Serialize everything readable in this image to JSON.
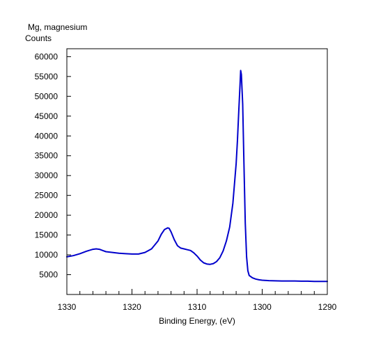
{
  "chart_data": {
    "type": "line",
    "title": "Mg, magnesium",
    "ylabel": "Counts",
    "xlabel": "Binding Energy, (eV)",
    "xlim": [
      1330,
      1290
    ],
    "x_reversed": true,
    "ylim": [
      0,
      62000
    ],
    "x_ticks": [
      1330,
      1320,
      1310,
      1300,
      1290
    ],
    "x_tick_labels": [
      "1330",
      "1320",
      "1310",
      "1300",
      "1290"
    ],
    "y_ticks": [
      5000,
      10000,
      15000,
      20000,
      25000,
      30000,
      35000,
      40000,
      45000,
      50000,
      55000,
      60000
    ],
    "y_tick_labels": [
      "5000",
      "10000",
      "15000",
      "20000",
      "25000",
      "30000",
      "35000",
      "40000",
      "45000",
      "50000",
      "55000",
      "60000"
    ],
    "grid": false,
    "series": [
      {
        "color": "#0000cc",
        "x": [
          1330,
          1329,
          1328,
          1327,
          1326,
          1325.5,
          1325,
          1324.5,
          1324,
          1323,
          1322,
          1321,
          1320,
          1319,
          1318,
          1317,
          1316,
          1315.5,
          1315,
          1314.5,
          1314.3,
          1314,
          1313.5,
          1313,
          1312.5,
          1312,
          1311.5,
          1311,
          1310.5,
          1310,
          1309.5,
          1309,
          1308.5,
          1308,
          1307.5,
          1307,
          1306.5,
          1306,
          1305.5,
          1305,
          1304.5,
          1304,
          1303.8,
          1303.6,
          1303.4,
          1303.3,
          1303.2,
          1303.0,
          1302.8,
          1302.6,
          1302.4,
          1302.2,
          1302,
          1301.5,
          1301,
          1300.5,
          1300,
          1299,
          1298,
          1297,
          1296,
          1295,
          1294,
          1293,
          1292,
          1291,
          1290
        ],
        "y": [
          9500,
          9800,
          10300,
          10900,
          11400,
          11500,
          11400,
          11100,
          10800,
          10600,
          10400,
          10300,
          10200,
          10200,
          10600,
          11500,
          13500,
          15200,
          16400,
          16800,
          16700,
          15800,
          13800,
          12300,
          11700,
          11500,
          11300,
          11100,
          10500,
          9700,
          8700,
          8000,
          7700,
          7600,
          7800,
          8300,
          9300,
          11000,
          13500,
          17000,
          23000,
          33000,
          39000,
          46000,
          53000,
          56500,
          55500,
          48000,
          33000,
          18000,
          9500,
          6000,
          4800,
          4200,
          3900,
          3700,
          3600,
          3500,
          3450,
          3400,
          3400,
          3400,
          3350,
          3350,
          3300,
          3300,
          3300
        ]
      }
    ]
  }
}
